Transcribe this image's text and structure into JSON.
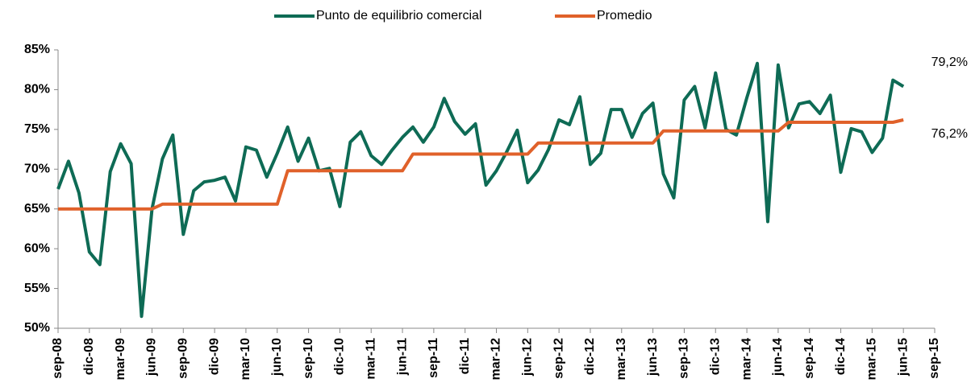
{
  "chart_data": {
    "type": "line",
    "categories": [
      "sep-08",
      null,
      null,
      "dic-08",
      null,
      null,
      "mar-09",
      null,
      null,
      "jun-09",
      null,
      null,
      "sep-09",
      null,
      null,
      "dic-09",
      null,
      null,
      "mar-10",
      null,
      null,
      "jun-10",
      null,
      null,
      "sep-10",
      null,
      null,
      "dic-10",
      null,
      null,
      "mar-11",
      null,
      null,
      "jun-11",
      null,
      null,
      "sep-11",
      null,
      null,
      "dic-11",
      null,
      null,
      "mar-12",
      null,
      null,
      "jun-12",
      null,
      null,
      "sep-12",
      null,
      null,
      "dic-12",
      null,
      null,
      "mar-13",
      null,
      null,
      "jun-13",
      null,
      null,
      "sep-13",
      null,
      null,
      "dic-13",
      null,
      null,
      "mar-14",
      null,
      null,
      "jun-14",
      null,
      null,
      "sep-14",
      null,
      null,
      "dic-14",
      null,
      null,
      "mar-15",
      null,
      null,
      "jun-15",
      null,
      null,
      "sep-15"
    ],
    "series": [
      {
        "name": "Punto de equilibrio comercial",
        "color": "#0e6b55",
        "values": [
          67.5,
          71,
          67,
          59.6,
          58,
          69.7,
          73.2,
          70.7,
          51.5,
          65,
          71.3,
          74.3,
          61.8,
          67.3,
          68.4,
          68.6,
          69,
          66,
          72.8,
          72.4,
          69,
          72,
          75.3,
          71,
          73.9,
          69.8,
          70.1,
          65.3,
          73.4,
          74.7,
          71.7,
          70.6,
          72.4,
          74,
          75.3,
          73.4,
          75.3,
          78.9,
          76,
          74.4,
          75.7,
          68,
          69.8,
          72.2,
          74.9,
          68.3,
          69.9,
          72.5,
          76.2,
          75.6,
          79.1,
          70.6,
          72,
          77.5,
          77.5,
          74,
          77,
          78.3,
          69.4,
          66.4,
          78.7,
          80.4,
          75.2,
          82.1,
          75,
          74.3,
          79,
          83.3,
          63.4,
          83.1,
          75.2,
          78.2,
          78.5,
          77,
          79.3,
          69.6,
          75.1,
          74.7,
          72.1,
          73.9,
          81.2,
          80.4,
          null,
          null,
          null
        ]
      },
      {
        "name": "Promedio",
        "color": "#e0612a",
        "values": [
          65,
          65,
          65,
          65,
          65,
          65,
          65,
          65,
          65,
          65,
          65.6,
          65.6,
          65.6,
          65.6,
          65.6,
          65.6,
          65.6,
          65.6,
          65.6,
          65.6,
          65.6,
          65.6,
          69.8,
          69.8,
          69.8,
          69.8,
          69.8,
          69.8,
          69.8,
          69.8,
          69.8,
          69.8,
          69.8,
          69.8,
          71.9,
          71.9,
          71.9,
          71.9,
          71.9,
          71.9,
          71.9,
          71.9,
          71.9,
          71.9,
          71.9,
          71.9,
          73.3,
          73.3,
          73.3,
          73.3,
          73.3,
          73.3,
          73.3,
          73.3,
          73.3,
          73.3,
          73.3,
          73.3,
          74.8,
          74.8,
          74.8,
          74.8,
          74.8,
          74.8,
          74.8,
          74.8,
          74.8,
          74.8,
          74.8,
          74.8,
          75.9,
          75.9,
          75.9,
          75.9,
          75.9,
          75.9,
          75.9,
          75.9,
          75.9,
          75.9,
          75.9,
          76.2,
          null,
          null,
          null
        ]
      }
    ],
    "annotations": [
      "79,2%",
      "76,2%"
    ],
    "ylim": [
      50,
      85
    ],
    "yticks": [
      {
        "value": 50,
        "label": "50%"
      },
      {
        "value": 55,
        "label": "55%"
      },
      {
        "value": 60,
        "label": "60%"
      },
      {
        "value": 65,
        "label": "65%"
      },
      {
        "value": 70,
        "label": "70%"
      },
      {
        "value": 75,
        "label": "75%"
      },
      {
        "value": 80,
        "label": "80%"
      },
      {
        "value": 85,
        "label": "85%"
      }
    ],
    "legend": "top"
  }
}
